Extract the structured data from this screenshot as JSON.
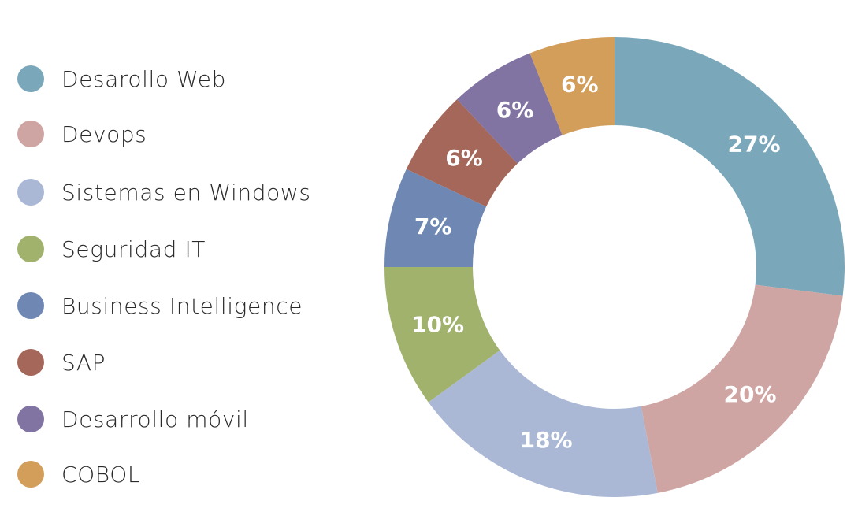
{
  "legend": [
    {
      "label": "Desarollo Web",
      "color": "#7AA8BA"
    },
    {
      "label": "Devops",
      "color": "#CEA5A3"
    },
    {
      "label": "Sistemas en Windows",
      "color": "#AAB8D6"
    },
    {
      "label": "Seguridad IT",
      "color": "#A1B26D"
    },
    {
      "label": "Business Intelligence",
      "color": "#6E88B3"
    },
    {
      "label": "SAP",
      "color": "#A46759"
    },
    {
      "label": "Desarrollo móvil",
      "color": "#8173A2"
    },
    {
      "label": "COBOL",
      "color": "#D39D5A"
    }
  ],
  "chart_data": {
    "type": "pie",
    "donut": true,
    "title": "",
    "categories": [
      "Desarollo Web",
      "Devops",
      "Sistemas en Windows",
      "Seguridad IT",
      "Business Intelligence",
      "SAP",
      "Desarrollo móvil",
      "COBOL"
    ],
    "values": [
      27,
      20,
      18,
      10,
      7,
      6,
      6,
      6
    ],
    "labels": [
      "27%",
      "20%",
      "18%",
      "10%",
      "7%",
      "6%",
      "6%",
      "6%"
    ],
    "colors": [
      "#7AA8BA",
      "#CEA5A3",
      "#AAB8D6",
      "#A1B26D",
      "#6E88B3",
      "#A46759",
      "#8173A2",
      "#D39D5A"
    ],
    "start": "top",
    "direction": "clockwise",
    "legend_position": "left"
  }
}
